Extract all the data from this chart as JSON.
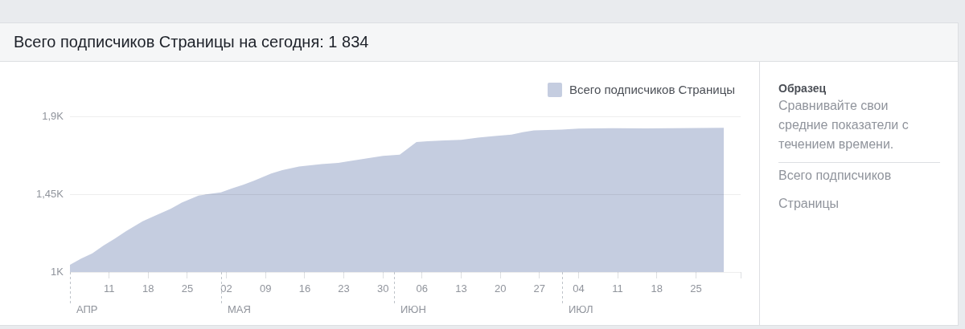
{
  "chart_data": {
    "type": "area",
    "title": "Всего подписчиков Страницы на сегодня: 1 834",
    "x": [
      "--04-04",
      "--04-06",
      "--04-08",
      "--04-10",
      "--04-12",
      "--04-14",
      "--04-17",
      "--04-19",
      "--04-22",
      "--04-24",
      "--04-27",
      "--04-28",
      "--05-01",
      "--05-03",
      "--05-05",
      "--05-07",
      "--05-10",
      "--05-12",
      "--05-15",
      "--05-19",
      "--05-22",
      "--05-24",
      "--05-27",
      "--05-30",
      "--06-02",
      "--06-05",
      "--06-07",
      "--06-10",
      "--06-13",
      "--06-16",
      "--06-19",
      "--06-22",
      "--06-24",
      "--06-26",
      "--07-01",
      "--07-04",
      "--07-10",
      "--07-16",
      "--07-21",
      "--07-30"
    ],
    "series": [
      {
        "name": "Всего подписчиков Страницы",
        "color": "#c5cde0",
        "values": [
          1042,
          1078,
          1108,
          1153,
          1193,
          1236,
          1294,
          1323,
          1365,
          1401,
          1442,
          1447,
          1461,
          1484,
          1505,
          1529,
          1569,
          1589,
          1610,
          1624,
          1631,
          1641,
          1656,
          1672,
          1679,
          1751,
          1756,
          1761,
          1764,
          1777,
          1786,
          1794,
          1808,
          1819,
          1824,
          1829,
          1832,
          1830,
          1832,
          1834
        ]
      }
    ],
    "xlim": [
      "--04-04",
      "--08-02"
    ],
    "xticks": [
      {
        "value": "--04-11",
        "label": "11"
      },
      {
        "value": "--04-18",
        "label": "18"
      },
      {
        "value": "--04-25",
        "label": "25"
      },
      {
        "value": "--05-02",
        "label": "02"
      },
      {
        "value": "--05-09",
        "label": "09"
      },
      {
        "value": "--05-16",
        "label": "16"
      },
      {
        "value": "--05-23",
        "label": "23"
      },
      {
        "value": "--05-30",
        "label": "30"
      },
      {
        "value": "--06-06",
        "label": "06"
      },
      {
        "value": "--06-13",
        "label": "13"
      },
      {
        "value": "--06-20",
        "label": "20"
      },
      {
        "value": "--06-27",
        "label": "27"
      },
      {
        "value": "--07-04",
        "label": "04"
      },
      {
        "value": "--07-11",
        "label": "11"
      },
      {
        "value": "--07-18",
        "label": "18"
      },
      {
        "value": "--07-25",
        "label": "25"
      },
      {
        "value": "--08-02",
        "label": null
      }
    ],
    "ylim": [
      1000,
      1900
    ],
    "yticks": [
      {
        "value": 1000,
        "label": "1K"
      },
      {
        "value": 1450,
        "label": "1,45K"
      },
      {
        "value": 1900,
        "label": "1,9K"
      }
    ],
    "ref_lines": [
      {
        "axis": "x",
        "value": "--04-04",
        "label": "АПР",
        "color": "#bec3c9",
        "line_style": "dashed"
      },
      {
        "axis": "x",
        "value": "--05-01",
        "label": "МАЯ",
        "color": "#bec3c9",
        "line_style": "dashed"
      },
      {
        "axis": "x",
        "value": "--06-01",
        "label": "ИЮН",
        "color": "#bec3c9",
        "line_style": "dashed"
      },
      {
        "axis": "x",
        "value": "--07-01",
        "label": "ИЮЛ",
        "color": "#bec3c9",
        "line_style": "dashed"
      }
    ],
    "grid": "y",
    "legend": "top right",
    "annotations": [
      "Образец",
      "Сравнивайте свои средние показатели с течением времени.",
      "Всего подписчиков",
      "Страницы"
    ]
  }
}
